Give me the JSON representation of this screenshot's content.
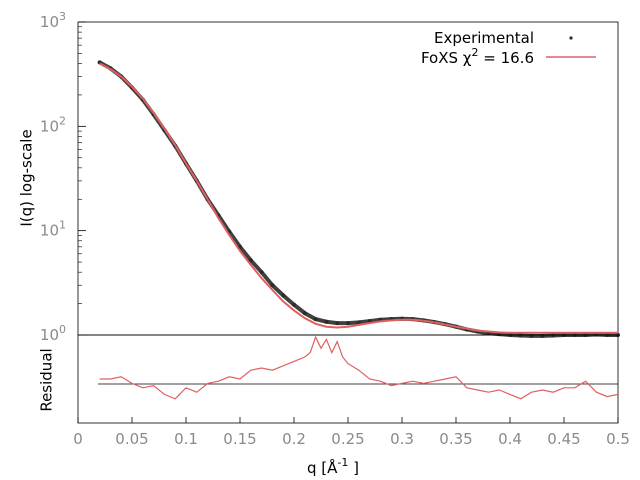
{
  "chart_data": [
    {
      "type": "scatter",
      "panel": "main",
      "ylabel": "I(q) log-scale",
      "yscale": "log",
      "ylim": [
        1,
        1000
      ],
      "xlim": [
        0,
        0.5
      ],
      "y_ticks": [
        {
          "value": 1,
          "base": "10",
          "exp": "0"
        },
        {
          "value": 10,
          "base": "10",
          "exp": "1"
        },
        {
          "value": 100,
          "base": "10",
          "exp": "2"
        },
        {
          "value": 1000,
          "base": "10",
          "exp": "3"
        }
      ],
      "legend": {
        "placement": "top-right",
        "experimental_label": "Experimental",
        "fit_label_prefix": "FoXS χ",
        "fit_label_sup": "2",
        "fit_label_suffix": " = 16.6"
      },
      "series": [
        {
          "name": "Experimental",
          "color": "#2b2b2b",
          "marker": "dot",
          "x": [
            0.02,
            0.03,
            0.04,
            0.05,
            0.06,
            0.07,
            0.08,
            0.09,
            0.1,
            0.11,
            0.12,
            0.13,
            0.14,
            0.15,
            0.16,
            0.17,
            0.18,
            0.19,
            0.2,
            0.21,
            0.22,
            0.23,
            0.24,
            0.25,
            0.26,
            0.27,
            0.28,
            0.29,
            0.3,
            0.31,
            0.32,
            0.33,
            0.34,
            0.35,
            0.36,
            0.37,
            0.38,
            0.39,
            0.4,
            0.41,
            0.42,
            0.43,
            0.44,
            0.45,
            0.46,
            0.47,
            0.48,
            0.49,
            0.5
          ],
          "y": [
            410,
            360,
            300,
            235,
            180,
            130,
            92,
            65,
            44,
            30,
            20,
            14,
            9.8,
            7.0,
            5.2,
            4.0,
            3.0,
            2.4,
            1.95,
            1.62,
            1.42,
            1.34,
            1.3,
            1.3,
            1.32,
            1.36,
            1.4,
            1.42,
            1.43,
            1.42,
            1.38,
            1.33,
            1.27,
            1.2,
            1.13,
            1.08,
            1.04,
            1.02,
            1.0,
            0.99,
            0.98,
            0.98,
            0.99,
            1.0,
            1.0,
            1.0,
            1.01,
            1.0,
            1.0
          ]
        },
        {
          "name": "FoXS χ2 = 16.6",
          "color": "#e06060",
          "marker": "line",
          "x": [
            0.02,
            0.03,
            0.04,
            0.05,
            0.06,
            0.07,
            0.08,
            0.09,
            0.1,
            0.11,
            0.12,
            0.13,
            0.14,
            0.15,
            0.16,
            0.17,
            0.18,
            0.19,
            0.2,
            0.21,
            0.22,
            0.23,
            0.24,
            0.25,
            0.26,
            0.27,
            0.28,
            0.29,
            0.3,
            0.31,
            0.32,
            0.33,
            0.34,
            0.35,
            0.36,
            0.37,
            0.38,
            0.39,
            0.4,
            0.41,
            0.42,
            0.43,
            0.44,
            0.45,
            0.46,
            0.47,
            0.48,
            0.49,
            0.5
          ],
          "y": [
            400,
            355,
            300,
            240,
            184,
            134,
            95,
            66,
            44,
            30,
            20,
            13.2,
            9.1,
            6.4,
            4.7,
            3.5,
            2.7,
            2.1,
            1.72,
            1.45,
            1.28,
            1.2,
            1.18,
            1.2,
            1.25,
            1.3,
            1.35,
            1.38,
            1.4,
            1.4,
            1.37,
            1.32,
            1.26,
            1.2,
            1.15,
            1.1,
            1.08,
            1.06,
            1.05,
            1.05,
            1.05,
            1.05,
            1.05,
            1.05,
            1.05,
            1.05,
            1.05,
            1.05,
            1.05
          ]
        }
      ]
    },
    {
      "type": "line",
      "panel": "residual",
      "ylabel": "Residual",
      "xlabel_main": "q [Å",
      "xlabel_sup": "-1",
      "xlabel_end": " ]",
      "xlim": [
        0,
        0.5
      ],
      "ylim": [
        -1,
        1
      ],
      "x_ticks": [
        "0",
        "0.05",
        "0.1",
        "0.15",
        "0.2",
        "0.25",
        "0.3",
        "0.35",
        "0.4",
        "0.45",
        "0.5"
      ],
      "zero_line": true,
      "series": [
        {
          "name": "",
          "color": "#e06060",
          "x": [
            0.02,
            0.03,
            0.04,
            0.05,
            0.06,
            0.07,
            0.08,
            0.09,
            0.1,
            0.11,
            0.12,
            0.13,
            0.14,
            0.15,
            0.16,
            0.17,
            0.18,
            0.19,
            0.2,
            0.21,
            0.215,
            0.22,
            0.225,
            0.23,
            0.235,
            0.24,
            0.245,
            0.25,
            0.26,
            0.27,
            0.28,
            0.29,
            0.3,
            0.31,
            0.32,
            0.33,
            0.34,
            0.35,
            0.36,
            0.37,
            0.38,
            0.39,
            0.4,
            0.41,
            0.42,
            0.43,
            0.44,
            0.45,
            0.46,
            0.47,
            0.48,
            0.49,
            0.5
          ],
          "y": [
            0.0,
            0.0,
            0.05,
            -0.1,
            -0.2,
            -0.15,
            -0.35,
            -0.45,
            -0.2,
            -0.3,
            -0.1,
            -0.05,
            0.05,
            0.0,
            0.2,
            0.25,
            0.2,
            0.3,
            0.4,
            0.5,
            0.6,
            0.95,
            0.7,
            0.9,
            0.6,
            0.85,
            0.5,
            0.35,
            0.2,
            0.0,
            -0.05,
            -0.15,
            -0.1,
            -0.05,
            -0.1,
            -0.05,
            0.0,
            0.05,
            -0.2,
            -0.25,
            -0.3,
            -0.25,
            -0.35,
            -0.45,
            -0.3,
            -0.25,
            -0.3,
            -0.2,
            -0.2,
            -0.05,
            -0.3,
            -0.4,
            -0.35
          ]
        }
      ]
    }
  ]
}
